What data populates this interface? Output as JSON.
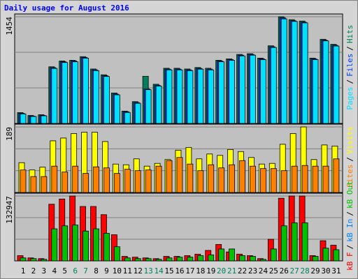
{
  "chart_data": [
    {
      "type": "bar",
      "title": "Daily usage for August 2016",
      "ylim": [
        0,
        1454
      ],
      "yticks": [
        1454
      ],
      "legend_reverse": true,
      "legend_separator": "/",
      "series": [
        {
          "name": "Hits",
          "color": "#00805c",
          "values": [
            148,
            109,
            119,
            772,
            851,
            861,
            910,
            742,
            663,
            415,
            168,
            297,
            643,
            534,
            752,
            752,
            742,
            762,
            752,
            861,
            880,
            940,
            950,
            890,
            1058,
            1454,
            1414,
            1395,
            890,
            1147,
            1078
          ]
        },
        {
          "name": "Files",
          "color": "#0040ff",
          "values": [
            138,
            100,
            110,
            760,
            840,
            852,
            900,
            730,
            650,
            400,
            160,
            285,
            470,
            520,
            740,
            740,
            730,
            750,
            740,
            850,
            870,
            930,
            940,
            880,
            1045,
            1440,
            1400,
            1380,
            880,
            1135,
            1065
          ]
        },
        {
          "name": "Pages",
          "color": "#00e0ff",
          "values": [
            130,
            95,
            104,
            750,
            830,
            840,
            890,
            720,
            640,
            390,
            150,
            275,
            460,
            510,
            730,
            730,
            720,
            740,
            730,
            840,
            860,
            920,
            930,
            870,
            1035,
            1425,
            1390,
            1370,
            870,
            1125,
            1055
          ]
        }
      ]
    },
    {
      "type": "bar",
      "ylim": [
        0,
        189
      ],
      "yticks": [
        189
      ],
      "legend_reverse": true,
      "legend_separator": "/",
      "series": [
        {
          "name": "Visits",
          "color": "#ffff00",
          "values": [
            86,
            65,
            73,
            149,
            157,
            170,
            174,
            174,
            147,
            82,
            80,
            97,
            76,
            84,
            95,
            122,
            130,
            97,
            111,
            107,
            124,
            118,
            101,
            82,
            84,
            139,
            170,
            189,
            95,
            137,
            134
          ]
        },
        {
          "name": "Sites",
          "color": "#ff8000",
          "values": [
            65,
            46,
            46,
            76,
            59,
            76,
            55,
            74,
            71,
            55,
            67,
            63,
            65,
            76,
            92,
            101,
            82,
            63,
            80,
            71,
            80,
            92,
            76,
            69,
            69,
            63,
            76,
            78,
            76,
            76,
            97
          ]
        }
      ]
    },
    {
      "type": "bar",
      "ylim": [
        0,
        132947
      ],
      "yticks": [
        132947
      ],
      "legend_reverse": false,
      "legend_separator": "/",
      "categories": [
        "1",
        "2",
        "3",
        "4",
        "5",
        "6",
        "7",
        "8",
        "9",
        "10",
        "11",
        "12",
        "13",
        "14",
        "15",
        "16",
        "17",
        "18",
        "19",
        "20",
        "21",
        "22",
        "23",
        "24",
        "25",
        "26",
        "27",
        "28",
        "29",
        "30",
        "31"
      ],
      "category_colors": [
        "#000000",
        "#000000",
        "#000000",
        "#000000",
        "#000000",
        "#00805c",
        "#00805c",
        "#000000",
        "#000000",
        "#000000",
        "#000000",
        "#000000",
        "#00805c",
        "#00805c",
        "#000000",
        "#000000",
        "#000000",
        "#000000",
        "#000000",
        "#00805c",
        "#00805c",
        "#000000",
        "#000000",
        "#000000",
        "#000000",
        "#000000",
        "#00805c",
        "#00805c",
        "#000000",
        "#000000",
        "#000000"
      ],
      "series": [
        {
          "name": "kB F",
          "color": "#ff0000",
          "values": [
            10700,
            6100,
            4600,
            116100,
            126800,
            132947,
            111500,
            111500,
            94700,
            53500,
            9200,
            7600,
            6100,
            4600,
            9200,
            9200,
            10700,
            13800,
            21400,
            33600,
            18300,
            13800,
            10700,
            4600,
            44300,
            128400,
            132947,
            132947,
            10700,
            41300,
            32100
          ]
        },
        {
          "name": "kB In",
          "color": "#0080ff",
          "values": [
            0,
            0,
            0,
            0,
            0,
            0,
            0,
            0,
            0,
            0,
            0,
            0,
            0,
            0,
            0,
            0,
            0,
            0,
            0,
            0,
            0,
            0,
            0,
            0,
            0,
            0,
            0,
            0,
            0,
            0,
            0
          ]
        },
        {
          "name": "kB Out",
          "color": "#00c000",
          "values": [
            6100,
            4600,
            3100,
            65700,
            71800,
            73400,
            61100,
            65700,
            56500,
            29000,
            6100,
            4600,
            4600,
            3100,
            6100,
            7600,
            7600,
            10700,
            12200,
            24400,
            24400,
            10700,
            9200,
            3100,
            24400,
            71800,
            77900,
            77900,
            9200,
            26000,
            22900
          ]
        }
      ]
    }
  ]
}
